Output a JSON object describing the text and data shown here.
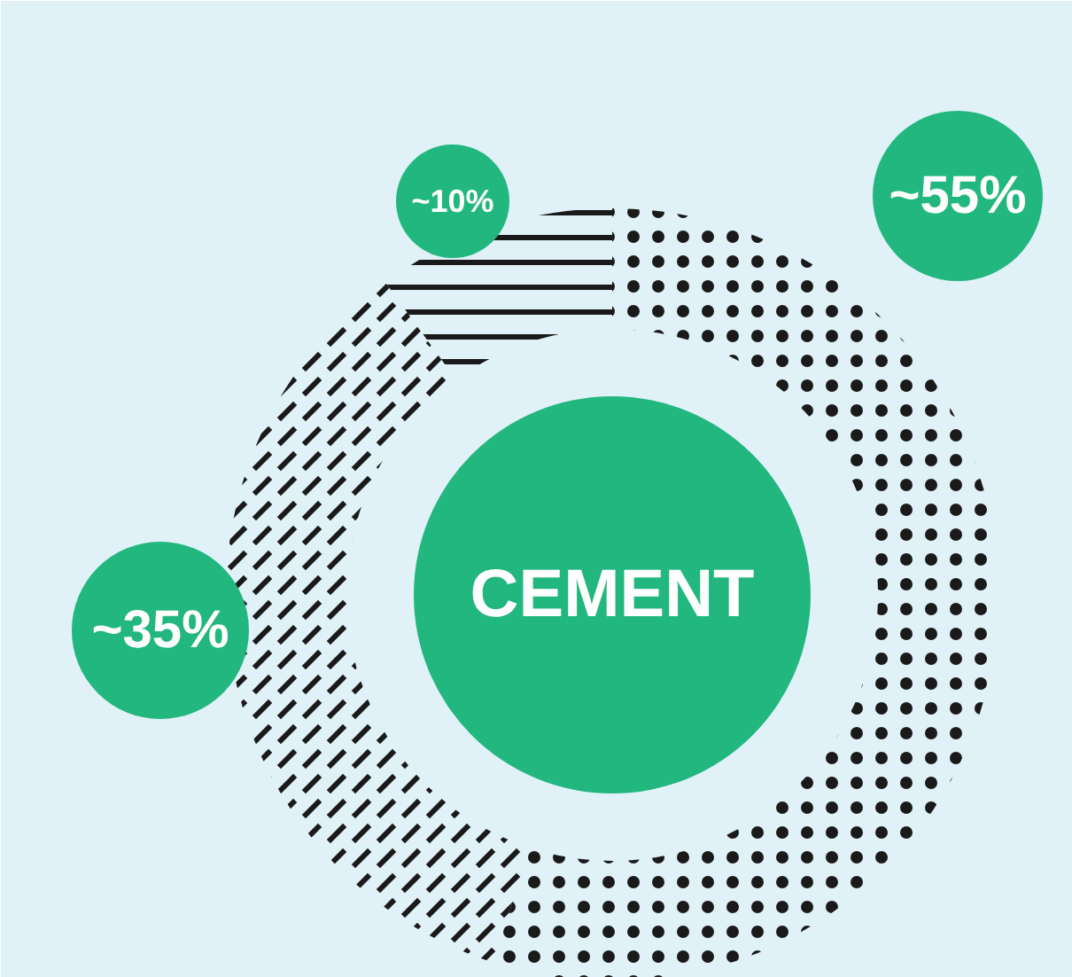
{
  "chart_data": {
    "type": "donut",
    "title": "CEMENT",
    "categories": [
      null,
      null,
      null
    ],
    "values": [
      55,
      35,
      10
    ],
    "colors": [
      "#1a1a1a",
      "#1a1a1a",
      "#1a1a1a"
    ],
    "value_labels": [
      "~55%",
      "~35%",
      "~10%"
    ]
  }
}
